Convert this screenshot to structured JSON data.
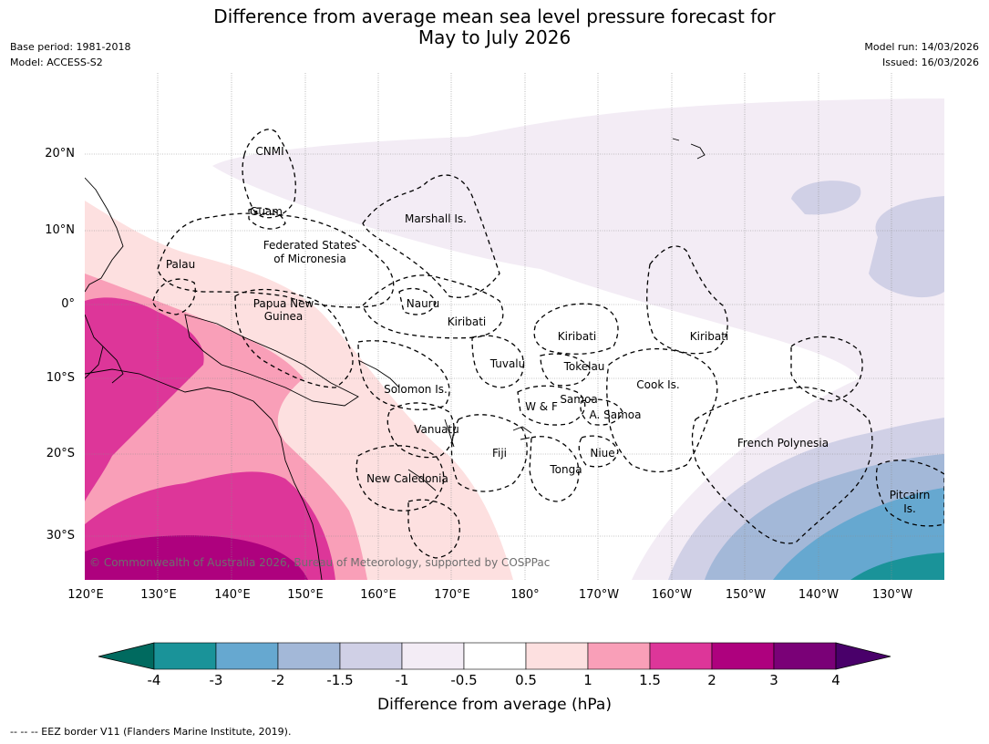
{
  "title": {
    "line1": "Difference from average mean sea level pressure forecast for",
    "line2": "May to July 2026"
  },
  "meta": {
    "base_period": "Base period: 1981-2018",
    "model": "Model: ACCESS-S2",
    "model_run": "Model run: 14/03/2026",
    "issued": "Issued: 16/03/2026"
  },
  "map": {
    "copyright": "© Commonwealth of Australia 2026, Bureau of Meteorology, supported by COSPPac",
    "lat_ticks": [
      "20°N",
      "10°N",
      "0°",
      "10°S",
      "20°S",
      "30°S"
    ],
    "lon_ticks": [
      "120°E",
      "130°E",
      "140°E",
      "150°E",
      "160°E",
      "170°E",
      "180°",
      "170°W",
      "160°W",
      "150°W",
      "140°W",
      "130°W"
    ],
    "places": {
      "cnmi": "CNMI",
      "guam": "Guam",
      "marshall": "Marshall Is.",
      "fsm1": "Federated States",
      "fsm2": "of Micronesia",
      "palau": "Palau",
      "png1": "Papua New",
      "png2": "Guinea",
      "nauru": "Nauru",
      "kiribati_w": "Kiribati",
      "kiribati_c": "Kiribati",
      "kiribati_e": "Kiribati",
      "tuvalu": "Tuvalu",
      "tokelau": "Tokelau",
      "cook": "Cook Is.",
      "solomon": "Solomon Is.",
      "wf": "W & F",
      "samoa": "Samoa",
      "asamoa": "A. Samoa",
      "vanuatu": "Vanuatu",
      "fiji": "Fiji",
      "niue": "Niue",
      "tonga": "Tonga",
      "french_poly": "French Polynesia",
      "new_caledonia": "New Caledonia",
      "pitcairn1": "Pitcairn",
      "pitcairn2": "Is."
    }
  },
  "colorbar": {
    "title": "Difference from average (hPa)",
    "labels": [
      "-4",
      "-3",
      "-2",
      "-1.5",
      "-1",
      "-0.5",
      "0.5",
      "1",
      "1.5",
      "2",
      "3",
      "4"
    ],
    "colors": [
      "#1a9399",
      "#66a8d0",
      "#a3b8d8",
      "#d0d0e6",
      "#f3ecf5",
      "#ffffff",
      "#fde0e0",
      "#f99fb8",
      "#dd3699",
      "#ae017e",
      "#7a0177"
    ],
    "low_extend_color": "#006a5f",
    "high_extend_color": "#49006a"
  },
  "footer": {
    "eez_note": "--  --  -- EEZ border V11 (Flanders Marine Institute, 2019)."
  }
}
